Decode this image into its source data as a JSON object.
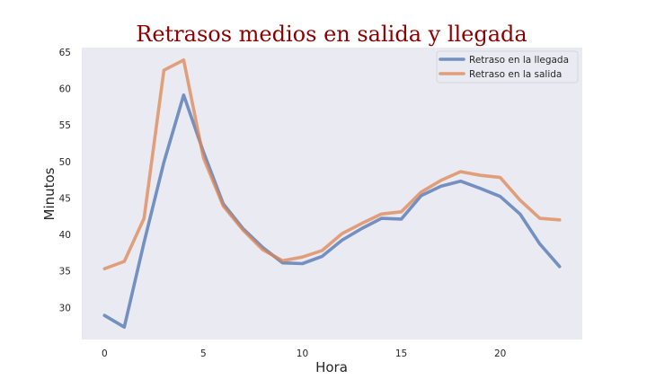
{
  "chart_data": {
    "type": "line",
    "title": "Retrasos medios en salida y llegada",
    "xlabel": "Hora",
    "ylabel": "Minutos",
    "x": [
      0,
      1,
      2,
      3,
      4,
      5,
      6,
      7,
      8,
      9,
      10,
      11,
      12,
      13,
      14,
      15,
      16,
      17,
      18,
      19,
      20,
      21,
      22,
      23
    ],
    "xlim": [
      -1.15,
      24.15
    ],
    "ylim": [
      25.6,
      65.6
    ],
    "xticks": [
      "0",
      "5",
      "10",
      "15",
      "20"
    ],
    "yticks": [
      "30",
      "35",
      "40",
      "45",
      "50",
      "55",
      "60",
      "65"
    ],
    "grid": false,
    "legend_position": "upper-right",
    "background": "#eaeaf2",
    "series": [
      {
        "name": "Retraso en la llegada",
        "color": "#4c72b0",
        "values": [
          28.9,
          27.3,
          38.9,
          49.9,
          59.1,
          51.3,
          44.2,
          40.8,
          38.2,
          36.1,
          36.0,
          37.0,
          39.2,
          40.8,
          42.2,
          42.1,
          45.3,
          46.6,
          47.3,
          46.3,
          45.2,
          42.8,
          38.7,
          35.6
        ]
      },
      {
        "name": "Retraso en la salida",
        "color": "#dd8452",
        "values": [
          35.3,
          36.3,
          42.2,
          62.5,
          63.9,
          50.5,
          43.9,
          40.6,
          37.9,
          36.4,
          36.9,
          37.8,
          40.1,
          41.5,
          42.8,
          43.1,
          45.8,
          47.4,
          48.6,
          48.1,
          47.8,
          44.7,
          42.2,
          42.0
        ]
      }
    ]
  }
}
